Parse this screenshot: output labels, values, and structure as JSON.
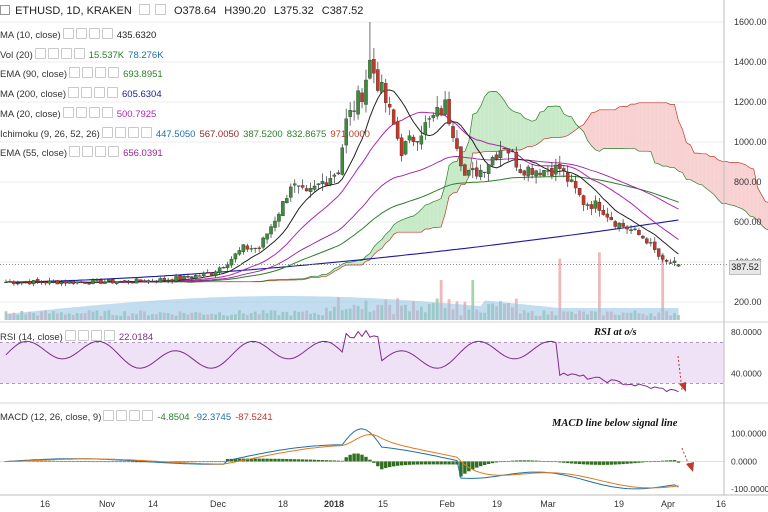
{
  "header": {
    "symbol": "ETHUSD, 1D, KRAKEN",
    "open": "O378.64",
    "high": "H390.20",
    "low": "L375.32",
    "close": "C387.52"
  },
  "legends": {
    "ma10": {
      "label": "MA (10, close)",
      "values": [
        "435.6320"
      ],
      "colors": [
        "#222222"
      ]
    },
    "vol": {
      "label": "Vol (20)",
      "values": [
        "15.537K",
        "78.276K"
      ],
      "colors": [
        "#2a7f2a",
        "#1e6fa8"
      ]
    },
    "ema90": {
      "label": "EMA (90, close)",
      "values": [
        "693.8951"
      ],
      "colors": [
        "#2a7f2a"
      ]
    },
    "ma200": {
      "label": "MA (200, close)",
      "values": [
        "605.6304"
      ],
      "colors": [
        "#1a1aa6"
      ]
    },
    "ma20": {
      "label": "MA (20, close)",
      "values": [
        "500.7925"
      ],
      "colors": [
        "#b026b0"
      ]
    },
    "ichimoku": {
      "label": "Ichimoku (9, 26, 52, 26)",
      "values": [
        "447.5050",
        "567.0050",
        "387.5200",
        "832.8675",
        "971.0000"
      ],
      "colors": [
        "#1e6fa8",
        "#8b2a2a",
        "#2a7f2a",
        "#2a7f2a",
        "#c0392b"
      ]
    },
    "ema55": {
      "label": "EMA (55, close)",
      "values": [
        "656.0391"
      ],
      "colors": [
        "#9b1fa0"
      ]
    },
    "rsi": {
      "label": "RSI (14, close)",
      "values": [
        "22.0184"
      ],
      "colors": [
        "#7d2c8a"
      ]
    },
    "macd": {
      "label": "MACD (12, 26, close, 9)",
      "values": [
        "-4.8504",
        "-92.3745",
        "-87.5241"
      ],
      "colors": [
        "#2a7f2a",
        "#1e6fa8",
        "#c0392b"
      ]
    }
  },
  "annotations": {
    "rsi": "RSI at o/s",
    "macd": "MACD line below signal line"
  },
  "last_price": "387.52",
  "chart_data": {
    "type": "candlestick",
    "title": "ETHUSD, 1D, KRAKEN",
    "x_ticks": [
      "16",
      "Nov",
      "14",
      "Dec",
      "18",
      "2018",
      "15",
      "Feb",
      "19",
      "Mar",
      "19",
      "Apr",
      "16"
    ],
    "price_axis": {
      "ticks": [
        200,
        400,
        600,
        800,
        1000,
        1200,
        1400,
        1600
      ],
      "range": [
        120,
        1650
      ]
    },
    "rsi_axis": {
      "ticks": [
        "80.0000",
        "40.0000"
      ],
      "bands": [
        30,
        70
      ],
      "range": [
        12,
        88
      ]
    },
    "macd_axis": {
      "ticks": [
        "100.0000",
        "0.0000",
        "-100.0000"
      ],
      "range": [
        -110,
        200
      ]
    },
    "ohlc_anchor_closes": [
      [
        0,
        300
      ],
      [
        20,
        300
      ],
      [
        35,
        305
      ],
      [
        45,
        320
      ],
      [
        52,
        345
      ],
      [
        56,
        400
      ],
      [
        60,
        470
      ],
      [
        64,
        470
      ],
      [
        70,
        690
      ],
      [
        72,
        790
      ],
      [
        76,
        730
      ],
      [
        80,
        800
      ],
      [
        84,
        860
      ],
      [
        86,
        1100
      ],
      [
        90,
        1250
      ],
      [
        92,
        1400
      ],
      [
        96,
        1200
      ],
      [
        100,
        960
      ],
      [
        104,
        1040
      ],
      [
        108,
        1120
      ],
      [
        111,
        1180
      ],
      [
        114,
        1000
      ],
      [
        116,
        830
      ],
      [
        120,
        860
      ],
      [
        126,
        990
      ],
      [
        130,
        870
      ],
      [
        136,
        860
      ],
      [
        140,
        870
      ],
      [
        146,
        700
      ],
      [
        150,
        680
      ],
      [
        154,
        600
      ],
      [
        158,
        560
      ],
      [
        162,
        510
      ],
      [
        166,
        400
      ],
      [
        170,
        387.52
      ]
    ],
    "last_values": {
      "open": 378.64,
      "high": 390.2,
      "low": 375.32,
      "close": 387.52,
      "ma10": 435.632,
      "ma20": 500.7925,
      "ema55": 656.0391,
      "ema90": 693.8951,
      "ma200": 605.6304,
      "rsi": 22.0184,
      "macd_hist": -4.8504,
      "macd": -92.3745,
      "signal": -87.5241
    }
  }
}
